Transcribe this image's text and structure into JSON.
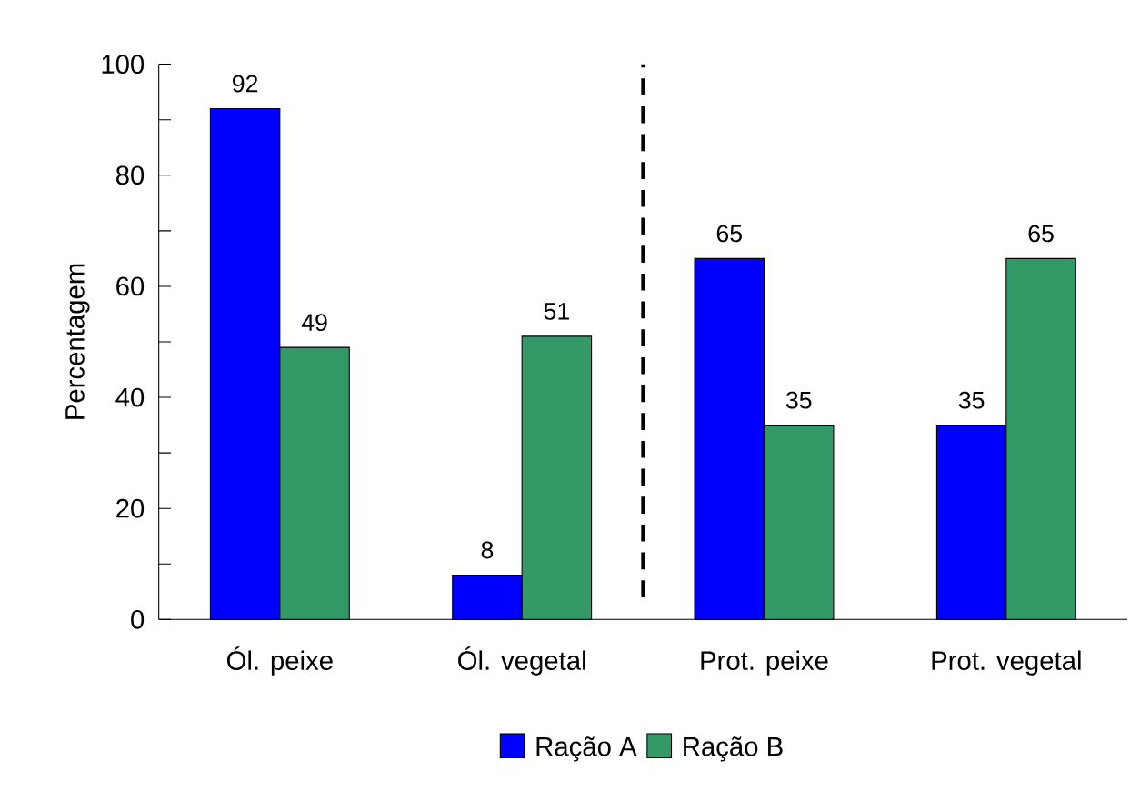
{
  "chart_data": {
    "type": "bar",
    "ylabel": "Percentagem",
    "categories": [
      "Ól. peixe",
      "Ól. vegetal",
      "Prot. peixe",
      "Prot. vegetal"
    ],
    "series": [
      {
        "name": "Ração A",
        "color": "#0000ff",
        "values": [
          92,
          8,
          65,
          35
        ]
      },
      {
        "name": "Ração B",
        "color": "#339966",
        "values": [
          49,
          51,
          35,
          65
        ]
      }
    ],
    "ylim": [
      0,
      100
    ],
    "yticks": [
      0,
      {
        "value": 10,
        "label": null
      },
      20,
      {
        "value": 30,
        "label": null
      },
      40,
      {
        "value": 50,
        "label": null
      },
      60,
      {
        "value": 70,
        "label": null
      },
      80,
      {
        "value": 90,
        "label": null
      },
      100
    ],
    "data_labels": true,
    "legend": "bottom",
    "grid": false
  }
}
